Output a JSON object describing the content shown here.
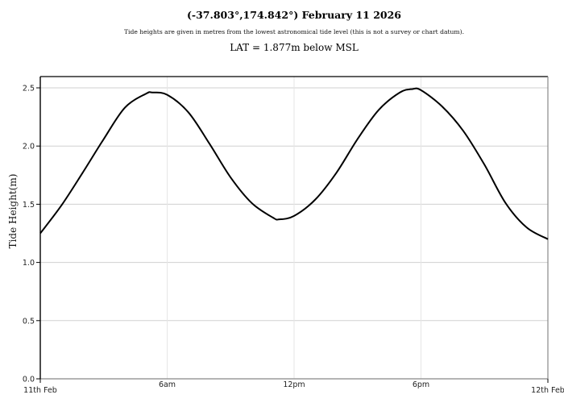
{
  "header": {
    "title": "(-37.803°,174.842°) February 11 2026",
    "subtitle": "Tide heights are given in metres from the lowest astronomical tide level (this is not a survey or chart datum).",
    "lat_note": "LAT = 1.877m below MSL"
  },
  "colors": {
    "line": "#000000",
    "grid": "#d0d0d0",
    "vgrid": "#e6e6e6",
    "axis_left": "#000000",
    "axis_other": "#888888"
  },
  "chart_data": {
    "type": "line",
    "title": "(-37.803°,174.842°) February 11 2026",
    "subtitle": "Tide heights are given in metres from the lowest astronomical tide level (this is not a survey or chart datum).",
    "annotation": "LAT = 1.877m below MSL",
    "xlabel": "",
    "ylabel": "Tide Height(m)",
    "x_unit": "hours since 11th Feb 00:00",
    "xlim": [
      0,
      24
    ],
    "ylim": [
      0,
      2.6
    ],
    "x_ticks": [
      {
        "x": 0,
        "label": "11th Feb"
      },
      {
        "x": 6,
        "label": "6am"
      },
      {
        "x": 12,
        "label": "12pm"
      },
      {
        "x": 18,
        "label": "6pm"
      },
      {
        "x": 24,
        "label": "12th Feb"
      }
    ],
    "y_ticks": [
      {
        "y": 0.0,
        "label": "0.0"
      },
      {
        "y": 0.5,
        "label": "0.5"
      },
      {
        "y": 1.0,
        "label": "1.0"
      },
      {
        "y": 1.5,
        "label": "1.5"
      },
      {
        "y": 2.0,
        "label": "2.0"
      },
      {
        "y": 2.5,
        "label": "2.5"
      }
    ],
    "grid": true,
    "legend": null,
    "series": [
      {
        "name": "Tide Height",
        "x": [
          0,
          1,
          2,
          3,
          4,
          5,
          5.3,
          6,
          7,
          8,
          9,
          10,
          11,
          11.3,
          12,
          13,
          14,
          15,
          16,
          17,
          17.6,
          18,
          19,
          20,
          21,
          22,
          23,
          24
        ],
        "values": [
          1.25,
          1.49,
          1.77,
          2.06,
          2.33,
          2.45,
          2.46,
          2.44,
          2.29,
          2.02,
          1.73,
          1.51,
          1.385,
          1.37,
          1.4,
          1.54,
          1.77,
          2.06,
          2.31,
          2.46,
          2.49,
          2.48,
          2.34,
          2.13,
          1.84,
          1.51,
          1.3,
          1.2
        ]
      }
    ]
  }
}
